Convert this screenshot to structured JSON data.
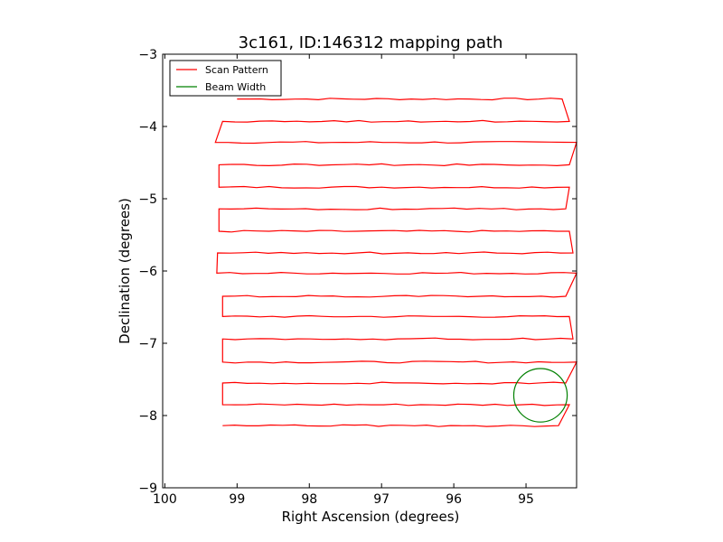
{
  "chart_data": {
    "type": "line",
    "title": "3c161, ID:146312 mapping path",
    "xlabel": "Right Ascension (degrees)",
    "ylabel": "Declination (degrees)",
    "xlim": [
      100.03,
      94.3
    ],
    "ylim": [
      -9,
      -3
    ],
    "x_ticks": [
      100,
      99,
      98,
      97,
      96,
      95
    ],
    "x_tick_labels": [
      "100",
      "99",
      "98",
      "97",
      "96",
      "95"
    ],
    "y_ticks": [
      -3,
      -4,
      -5,
      -6,
      -7,
      -8,
      -9
    ],
    "y_tick_labels": [
      "−3",
      "−4",
      "−5",
      "−6",
      "−7",
      "−8",
      "−9"
    ],
    "grid": false,
    "legend_position": "top-left",
    "series": [
      {
        "name": "Scan Pattern",
        "color": "#ff0000",
        "rows": [
          {
            "dec": -3.62,
            "ra_start": 99.0,
            "ra_end": 94.5
          },
          {
            "dec": -3.93,
            "ra_start": 99.2,
            "ra_end": 94.4
          },
          {
            "dec": -4.22,
            "ra_start": 99.3,
            "ra_end": 94.3
          },
          {
            "dec": -4.53,
            "ra_start": 99.25,
            "ra_end": 94.4
          },
          {
            "dec": -4.84,
            "ra_start": 99.25,
            "ra_end": 94.4
          },
          {
            "dec": -5.14,
            "ra_start": 99.25,
            "ra_end": 94.45
          },
          {
            "dec": -5.45,
            "ra_start": 99.25,
            "ra_end": 94.4
          },
          {
            "dec": -5.75,
            "ra_start": 99.27,
            "ra_end": 94.35
          },
          {
            "dec": -6.03,
            "ra_start": 99.28,
            "ra_end": 94.3
          },
          {
            "dec": -6.35,
            "ra_start": 99.2,
            "ra_end": 94.45
          },
          {
            "dec": -6.63,
            "ra_start": 99.2,
            "ra_end": 94.4
          },
          {
            "dec": -6.94,
            "ra_start": 99.2,
            "ra_end": 94.35
          },
          {
            "dec": -7.26,
            "ra_start": 99.2,
            "ra_end": 94.3
          },
          {
            "dec": -7.55,
            "ra_start": 99.2,
            "ra_end": 94.45
          },
          {
            "dec": -7.85,
            "ra_start": 99.2,
            "ra_end": 94.4
          },
          {
            "dec": -8.14,
            "ra_start": 99.2,
            "ra_end": 94.55
          }
        ]
      },
      {
        "name": "Beam Width",
        "color": "#008000",
        "shape": "circle",
        "center_ra": 94.8,
        "center_dec": -7.72,
        "radius_deg": 0.37
      }
    ]
  }
}
